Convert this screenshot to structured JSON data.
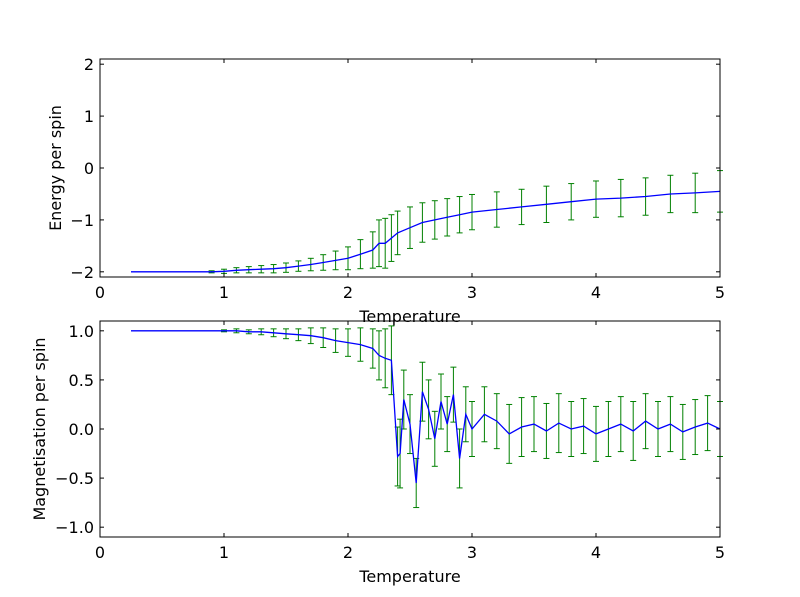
{
  "colors": {
    "line": "#0000ff",
    "errorbar": "#008000",
    "errorfill": "#80ff80",
    "axes": "#000000"
  },
  "chart_data": [
    {
      "type": "line",
      "title": "",
      "xlabel": "Temperature",
      "ylabel": "Energy per spin",
      "xlim": [
        0,
        5
      ],
      "ylim": [
        -2.1,
        2.1
      ],
      "xticks": [
        0,
        1,
        2,
        3,
        4,
        5
      ],
      "xtick_labels": [
        "0",
        "1",
        "2",
        "3",
        "4",
        "5"
      ],
      "yticks": [
        -2,
        -1,
        0,
        1,
        2
      ],
      "ytick_labels": [
        "−2",
        "−1",
        "0",
        "1",
        "2"
      ],
      "grid": false,
      "series": [
        {
          "x": [
            0.25,
            0.5,
            0.75,
            0.9,
            1.0,
            1.1,
            1.2,
            1.3,
            1.4,
            1.5,
            1.6,
            1.7,
            1.8,
            1.9,
            2.0,
            2.1,
            2.2,
            2.25,
            2.3,
            2.35,
            2.4,
            2.5,
            2.6,
            2.7,
            2.8,
            2.9,
            3.0,
            3.2,
            3.4,
            3.6,
            3.8,
            4.0,
            4.2,
            4.4,
            4.6,
            4.8,
            5.0
          ],
          "y": [
            -2.0,
            -2.0,
            -2.0,
            -2.0,
            -1.99,
            -1.97,
            -1.96,
            -1.95,
            -1.94,
            -1.92,
            -1.89,
            -1.86,
            -1.82,
            -1.78,
            -1.74,
            -1.66,
            -1.58,
            -1.45,
            -1.45,
            -1.35,
            -1.25,
            -1.15,
            -1.05,
            -1.0,
            -0.95,
            -0.9,
            -0.85,
            -0.8,
            -0.75,
            -0.7,
            -0.65,
            -0.6,
            -0.58,
            -0.55,
            -0.5,
            -0.48,
            -0.45
          ],
          "yerr": [
            0.0,
            0.0,
            0.0,
            0.02,
            0.04,
            0.05,
            0.06,
            0.07,
            0.08,
            0.09,
            0.1,
            0.12,
            0.15,
            0.18,
            0.22,
            0.28,
            0.35,
            0.45,
            0.48,
            0.45,
            0.42,
            0.4,
            0.38,
            0.37,
            0.36,
            0.35,
            0.34,
            0.34,
            0.34,
            0.35,
            0.35,
            0.35,
            0.36,
            0.36,
            0.36,
            0.38,
            0.4
          ]
        }
      ]
    },
    {
      "type": "line",
      "title": "",
      "xlabel": "Temperature",
      "ylabel": "Magnetisation per spin",
      "xlim": [
        0,
        5
      ],
      "ylim": [
        -1.1,
        1.1
      ],
      "xticks": [
        0,
        1,
        2,
        3,
        4,
        5
      ],
      "xtick_labels": [
        "0",
        "1",
        "2",
        "3",
        "4",
        "5"
      ],
      "yticks": [
        -1.0,
        -0.5,
        0.0,
        0.5,
        1.0
      ],
      "ytick_labels": [
        "−1.0",
        "−0.5",
        "0.0",
        "0.5",
        "1.0"
      ],
      "grid": false,
      "series": [
        {
          "x": [
            0.25,
            0.5,
            0.75,
            0.9,
            1.0,
            1.1,
            1.2,
            1.3,
            1.4,
            1.5,
            1.6,
            1.7,
            1.8,
            1.9,
            2.0,
            2.1,
            2.2,
            2.25,
            2.3,
            2.35,
            2.4,
            2.42,
            2.45,
            2.5,
            2.55,
            2.6,
            2.65,
            2.7,
            2.75,
            2.8,
            2.85,
            2.9,
            2.95,
            3.0,
            3.1,
            3.2,
            3.3,
            3.4,
            3.5,
            3.6,
            3.7,
            3.8,
            3.9,
            4.0,
            4.1,
            4.2,
            4.3,
            4.4,
            4.5,
            4.6,
            4.7,
            4.8,
            4.9,
            5.0
          ],
          "y": [
            1.0,
            1.0,
            1.0,
            1.0,
            1.0,
            1.0,
            0.99,
            0.99,
            0.98,
            0.97,
            0.96,
            0.95,
            0.93,
            0.9,
            0.88,
            0.86,
            0.82,
            0.75,
            0.72,
            0.7,
            -0.28,
            -0.25,
            0.3,
            0.05,
            -0.55,
            0.38,
            0.2,
            -0.1,
            0.28,
            0.05,
            0.35,
            -0.3,
            0.15,
            0.0,
            0.15,
            0.08,
            -0.05,
            0.02,
            0.05,
            -0.02,
            0.06,
            0.0,
            0.03,
            -0.05,
            0.0,
            0.05,
            -0.02,
            0.08,
            0.0,
            0.05,
            -0.03,
            0.02,
            0.06,
            0.0
          ],
          "yerr": [
            0.0,
            0.0,
            0.0,
            0.0,
            0.01,
            0.02,
            0.02,
            0.03,
            0.04,
            0.05,
            0.06,
            0.08,
            0.1,
            0.12,
            0.14,
            0.17,
            0.2,
            0.25,
            0.3,
            0.35,
            0.3,
            0.35,
            0.3,
            0.3,
            0.25,
            0.3,
            0.3,
            0.28,
            0.28,
            0.28,
            0.28,
            0.3,
            0.28,
            0.28,
            0.28,
            0.28,
            0.3,
            0.3,
            0.28,
            0.28,
            0.3,
            0.28,
            0.28,
            0.28,
            0.28,
            0.28,
            0.3,
            0.28,
            0.28,
            0.28,
            0.28,
            0.28,
            0.28,
            0.28
          ]
        }
      ]
    }
  ]
}
